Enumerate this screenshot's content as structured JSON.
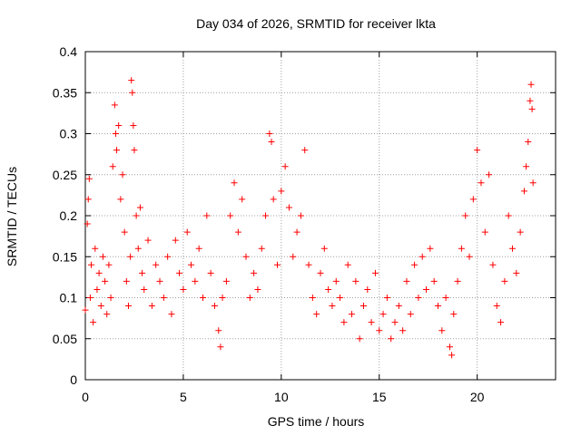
{
  "chart_data": {
    "type": "scatter",
    "title": "Day 034 of 2026, SRMTID for receiver lkta",
    "xlabel": "GPS time / hours",
    "ylabel": "SRMTID / TECUs",
    "xlim": [
      0,
      24
    ],
    "ylim": [
      0,
      0.4
    ],
    "xticks": [
      0,
      5,
      10,
      15,
      20
    ],
    "yticks": [
      0,
      0.05,
      0.1,
      0.15,
      0.2,
      0.25,
      0.3,
      0.35,
      0.4
    ],
    "ytick_labels": [
      "0",
      "0.05",
      "0.1",
      "0.15",
      "0.2",
      "0.25",
      "0.3",
      "0.35",
      "0.4"
    ],
    "xtick_labels": [
      "0",
      "5",
      "10",
      "15",
      "20"
    ],
    "grid": true,
    "marker": "+",
    "color": "#ff0000",
    "series": [
      {
        "name": "SRMTID",
        "points": [
          [
            0.0,
            0.085
          ],
          [
            0.1,
            0.19
          ],
          [
            0.15,
            0.22
          ],
          [
            0.2,
            0.245
          ],
          [
            0.25,
            0.1
          ],
          [
            0.3,
            0.14
          ],
          [
            0.4,
            0.07
          ],
          [
            0.5,
            0.16
          ],
          [
            0.6,
            0.11
          ],
          [
            0.7,
            0.13
          ],
          [
            0.8,
            0.09
          ],
          [
            0.9,
            0.15
          ],
          [
            1.0,
            0.12
          ],
          [
            1.1,
            0.08
          ],
          [
            1.2,
            0.14
          ],
          [
            1.3,
            0.1
          ],
          [
            1.4,
            0.26
          ],
          [
            1.5,
            0.335
          ],
          [
            1.55,
            0.3
          ],
          [
            1.6,
            0.28
          ],
          [
            1.7,
            0.31
          ],
          [
            1.8,
            0.22
          ],
          [
            1.9,
            0.25
          ],
          [
            2.0,
            0.18
          ],
          [
            2.1,
            0.12
          ],
          [
            2.2,
            0.09
          ],
          [
            2.3,
            0.15
          ],
          [
            2.35,
            0.365
          ],
          [
            2.4,
            0.35
          ],
          [
            2.45,
            0.31
          ],
          [
            2.5,
            0.28
          ],
          [
            2.6,
            0.2
          ],
          [
            2.7,
            0.16
          ],
          [
            2.8,
            0.21
          ],
          [
            2.9,
            0.13
          ],
          [
            3.0,
            0.11
          ],
          [
            3.2,
            0.17
          ],
          [
            3.4,
            0.09
          ],
          [
            3.6,
            0.14
          ],
          [
            3.8,
            0.12
          ],
          [
            4.0,
            0.1
          ],
          [
            4.2,
            0.15
          ],
          [
            4.4,
            0.08
          ],
          [
            4.6,
            0.17
          ],
          [
            4.8,
            0.13
          ],
          [
            5.0,
            0.11
          ],
          [
            5.2,
            0.18
          ],
          [
            5.4,
            0.14
          ],
          [
            5.6,
            0.12
          ],
          [
            5.8,
            0.16
          ],
          [
            6.0,
            0.1
          ],
          [
            6.2,
            0.2
          ],
          [
            6.4,
            0.13
          ],
          [
            6.6,
            0.09
          ],
          [
            6.8,
            0.06
          ],
          [
            6.9,
            0.04
          ],
          [
            7.0,
            0.1
          ],
          [
            7.2,
            0.12
          ],
          [
            7.4,
            0.2
          ],
          [
            7.6,
            0.24
          ],
          [
            7.8,
            0.18
          ],
          [
            8.0,
            0.22
          ],
          [
            8.2,
            0.15
          ],
          [
            8.4,
            0.1
          ],
          [
            8.6,
            0.13
          ],
          [
            8.8,
            0.11
          ],
          [
            9.0,
            0.16
          ],
          [
            9.2,
            0.2
          ],
          [
            9.4,
            0.3
          ],
          [
            9.5,
            0.29
          ],
          [
            9.6,
            0.22
          ],
          [
            9.8,
            0.14
          ],
          [
            10.0,
            0.23
          ],
          [
            10.2,
            0.26
          ],
          [
            10.4,
            0.21
          ],
          [
            10.6,
            0.15
          ],
          [
            10.8,
            0.18
          ],
          [
            11.0,
            0.2
          ],
          [
            11.2,
            0.28
          ],
          [
            11.4,
            0.14
          ],
          [
            11.6,
            0.1
          ],
          [
            11.8,
            0.08
          ],
          [
            12.0,
            0.13
          ],
          [
            12.2,
            0.16
          ],
          [
            12.4,
            0.11
          ],
          [
            12.6,
            0.09
          ],
          [
            12.8,
            0.12
          ],
          [
            13.0,
            0.1
          ],
          [
            13.2,
            0.07
          ],
          [
            13.4,
            0.14
          ],
          [
            13.6,
            0.08
          ],
          [
            13.8,
            0.12
          ],
          [
            14.0,
            0.05
          ],
          [
            14.2,
            0.09
          ],
          [
            14.4,
            0.11
          ],
          [
            14.6,
            0.07
          ],
          [
            14.8,
            0.13
          ],
          [
            15.0,
            0.06
          ],
          [
            15.2,
            0.08
          ],
          [
            15.4,
            0.1
          ],
          [
            15.6,
            0.05
          ],
          [
            15.8,
            0.07
          ],
          [
            16.0,
            0.09
          ],
          [
            16.2,
            0.06
          ],
          [
            16.4,
            0.12
          ],
          [
            16.6,
            0.08
          ],
          [
            16.8,
            0.14
          ],
          [
            17.0,
            0.1
          ],
          [
            17.2,
            0.15
          ],
          [
            17.4,
            0.11
          ],
          [
            17.6,
            0.16
          ],
          [
            17.8,
            0.12
          ],
          [
            18.0,
            0.09
          ],
          [
            18.2,
            0.06
          ],
          [
            18.4,
            0.1
          ],
          [
            18.6,
            0.04
          ],
          [
            18.7,
            0.03
          ],
          [
            18.8,
            0.08
          ],
          [
            19.0,
            0.12
          ],
          [
            19.2,
            0.16
          ],
          [
            19.4,
            0.2
          ],
          [
            19.6,
            0.15
          ],
          [
            19.8,
            0.22
          ],
          [
            20.0,
            0.28
          ],
          [
            20.2,
            0.24
          ],
          [
            20.4,
            0.18
          ],
          [
            20.6,
            0.25
          ],
          [
            20.8,
            0.14
          ],
          [
            21.0,
            0.09
          ],
          [
            21.2,
            0.07
          ],
          [
            21.4,
            0.12
          ],
          [
            21.6,
            0.2
          ],
          [
            21.8,
            0.16
          ],
          [
            22.0,
            0.13
          ],
          [
            22.2,
            0.18
          ],
          [
            22.4,
            0.23
          ],
          [
            22.5,
            0.26
          ],
          [
            22.6,
            0.29
          ],
          [
            22.7,
            0.34
          ],
          [
            22.75,
            0.36
          ],
          [
            22.8,
            0.33
          ],
          [
            22.85,
            0.24
          ]
        ]
      }
    ]
  }
}
